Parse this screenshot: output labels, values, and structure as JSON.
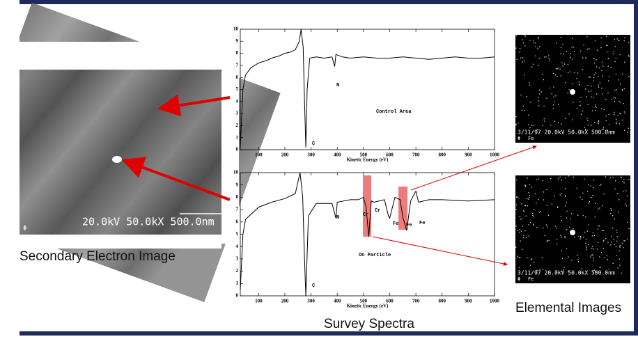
{
  "sem_image": {
    "overlay": "20.0kV 50.0kX 500.0nm",
    "logo": "Φ",
    "caption": "Secondary Electron Image"
  },
  "chart_data": [
    {
      "type": "line",
      "x_label": "Kinetic Energy (eV)",
      "x": [
        30,
        40,
        50,
        70,
        100,
        130,
        150,
        180,
        200,
        220,
        240,
        255,
        262,
        270,
        275,
        280,
        285,
        295,
        320,
        350,
        380,
        390,
        395,
        420,
        450,
        500,
        550,
        600,
        650,
        700,
        750,
        800,
        850,
        900,
        950,
        1000
      ],
      "series": [
        {
          "color": "#000000",
          "values": [
            0.2,
            5,
            6.2,
            6.8,
            7.2,
            7.4,
            7.6,
            7.8,
            8,
            8.1,
            8.3,
            9,
            10,
            8.5,
            4,
            0.2,
            5,
            7.6,
            7.7,
            7.6,
            7.7,
            6.9,
            7.9,
            7.7,
            7.6,
            7.7,
            7.6,
            7.6,
            7.7,
            7.6,
            7.5,
            7.6,
            7.7,
            7.6,
            7.6,
            7.7
          ]
        }
      ],
      "xlim": [
        30,
        1000
      ],
      "xticks": [
        100,
        200,
        300,
        400,
        500,
        600,
        700,
        800,
        900,
        1000
      ],
      "ylim": [
        0,
        10
      ],
      "yticks": [
        0,
        1,
        2,
        3,
        4,
        5,
        6,
        7,
        8,
        9,
        10
      ],
      "annotations": [
        "C",
        "N",
        "Control Area"
      ]
    },
    {
      "type": "line",
      "x_label": "Kinetic Energy (eV)",
      "x": [
        30,
        40,
        50,
        100,
        150,
        200,
        240,
        258,
        268,
        275,
        280,
        290,
        320,
        350,
        380,
        395,
        400,
        450,
        480,
        500,
        510,
        520,
        530,
        540,
        580,
        595,
        600,
        620,
        640,
        650,
        665,
        680,
        700,
        710,
        750,
        800,
        900,
        1000
      ],
      "series": [
        {
          "color": "#000000",
          "values": [
            0.5,
            5,
            6.2,
            7.2,
            7.6,
            7.9,
            8.3,
            10,
            8,
            3,
            0,
            6.5,
            7.5,
            7.5,
            7.5,
            6.3,
            7.6,
            7.8,
            7.8,
            8,
            7.2,
            4.8,
            7.7,
            7.6,
            7.8,
            6.5,
            6.3,
            8,
            7.8,
            6.4,
            5.3,
            7.7,
            8.5,
            7.6,
            7.8,
            7.8,
            7.7,
            7.8
          ]
        }
      ],
      "xlim": [
        30,
        1000
      ],
      "xticks": [
        100,
        200,
        300,
        400,
        500,
        600,
        700,
        800,
        900,
        1000
      ],
      "ylim": [
        0,
        10
      ],
      "yticks": [
        0,
        1,
        2,
        3,
        4,
        5,
        6,
        7,
        8,
        9,
        10
      ],
      "annotations": [
        "N",
        "Cr",
        "Cr",
        "Fe",
        "Fe",
        "Fe",
        "On Particle",
        "C"
      ]
    }
  ],
  "spectra_caption": "Survey Spectra",
  "elemental_images": {
    "items": [
      {
        "overlay": "3/11/97 20.0kV 50.0kX 500.0nm",
        "element": "Fe",
        "logo": "Φ"
      },
      {
        "overlay": "3/11/97 20.0kV 50.0kX 500.0nm",
        "element": "Fe",
        "logo": "Φ"
      }
    ],
    "caption": "Elemental Images"
  }
}
